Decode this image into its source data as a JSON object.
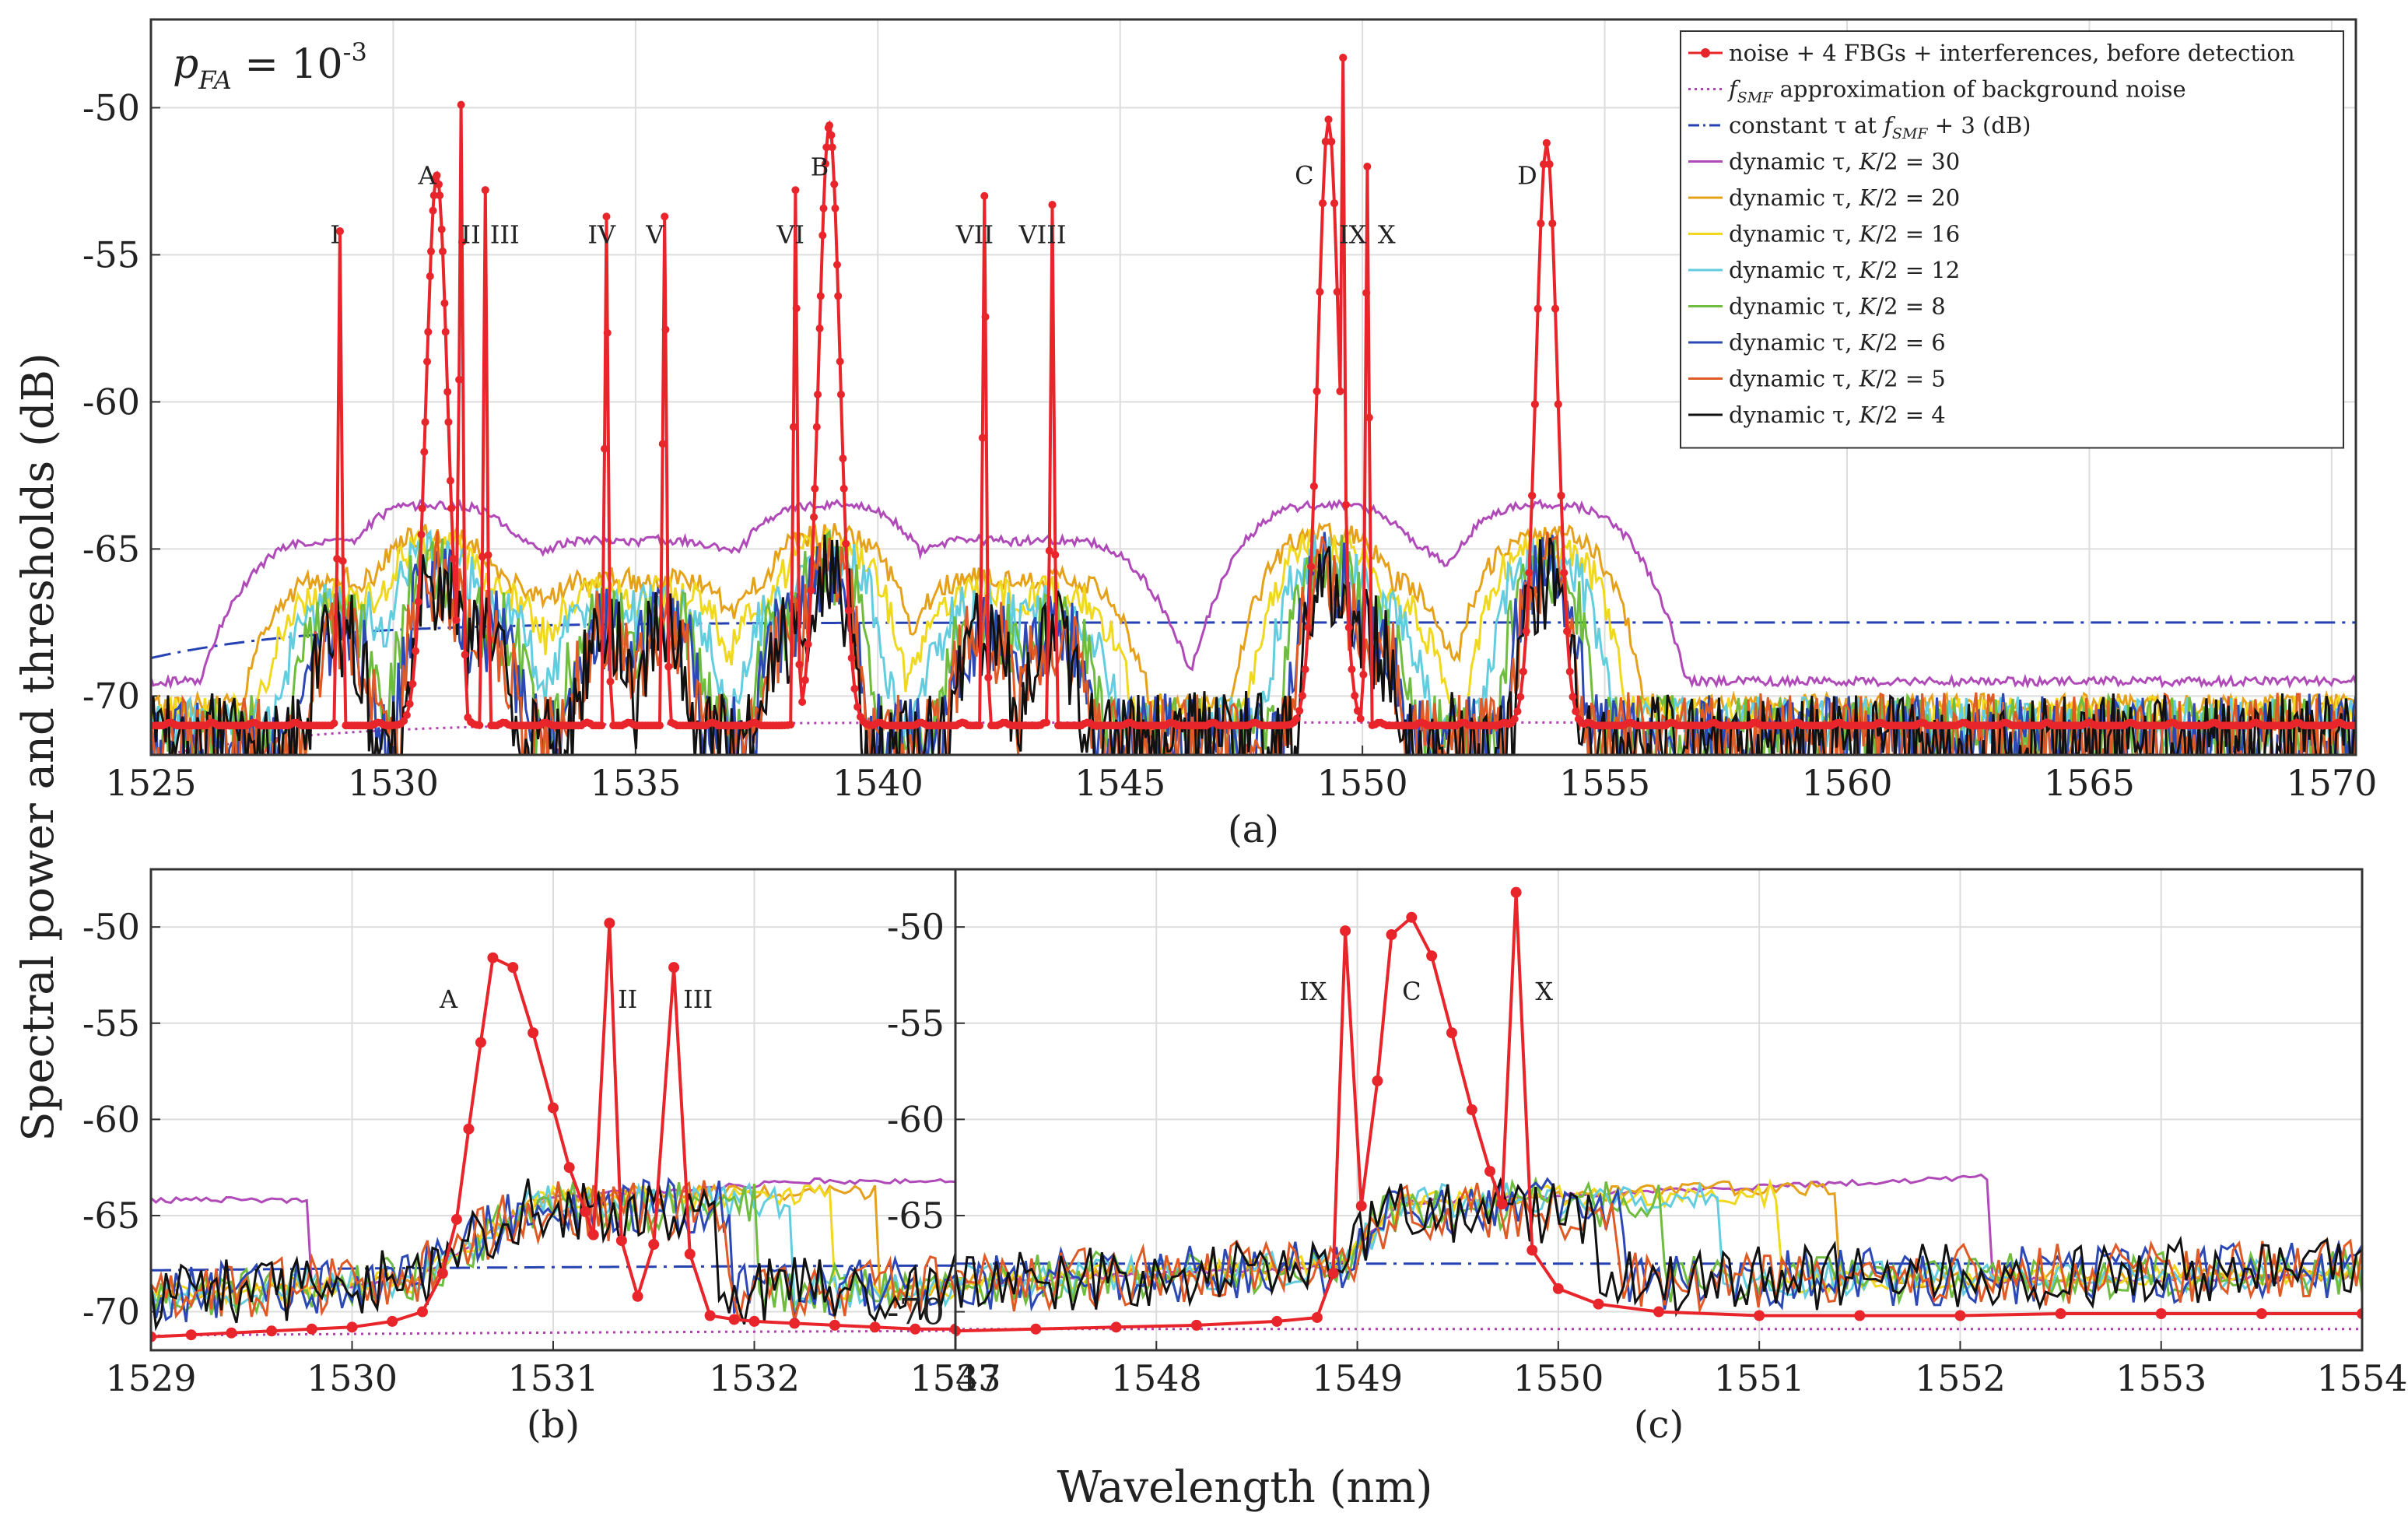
{
  "chart_data": [
    {
      "panel": "a",
      "type": "line",
      "panel_label": "(a)",
      "annotation": {
        "p": "p",
        "sub": "FA",
        "eq": " = 10",
        "sup": "-3"
      },
      "xlim": [
        1525,
        1570.5
      ],
      "ylim": [
        -72,
        -47
      ],
      "xticks": [
        1525,
        1530,
        1535,
        1540,
        1545,
        1550,
        1555,
        1560,
        1565,
        1570
      ],
      "yticks": [
        -50,
        -55,
        -60,
        -65,
        -70
      ],
      "grid": true,
      "fbgs": [
        {
          "label": "A",
          "center": 1530.9,
          "peak": -52.3
        },
        {
          "label": "B",
          "center": 1539.0,
          "peak": -50.6
        },
        {
          "label": "C",
          "center": 1549.3,
          "peak": -50.4
        },
        {
          "label": "D",
          "center": 1553.8,
          "peak": -51.2
        }
      ],
      "interferences": [
        {
          "label": "I",
          "x": 1528.9,
          "peak": -54.2
        },
        {
          "label": "II",
          "x": 1531.4,
          "peak": -49.9
        },
        {
          "label": "III",
          "x": 1531.9,
          "peak": -52.8
        },
        {
          "label": "IV",
          "x": 1534.4,
          "peak": -53.7
        },
        {
          "label": "V",
          "x": 1535.6,
          "peak": -53.7
        },
        {
          "label": "VI",
          "x": 1538.3,
          "peak": -52.8
        },
        {
          "label": "VII",
          "x": 1542.2,
          "peak": -53.0
        },
        {
          "label": "VIII",
          "x": 1543.6,
          "peak": -53.3
        },
        {
          "label": "IX",
          "x": 1549.6,
          "peak": -48.3
        },
        {
          "label": "X",
          "x": 1550.1,
          "peak": -52.0
        }
      ],
      "peak_labels": [
        {
          "text": "I",
          "x": 1528.8,
          "y": -54.6
        },
        {
          "text": "A",
          "x": 1530.7,
          "y": -52.6
        },
        {
          "text": "II",
          "x": 1531.6,
          "y": -54.6
        },
        {
          "text": "III",
          "x": 1532.3,
          "y": -54.6
        },
        {
          "text": "IV",
          "x": 1534.3,
          "y": -54.6
        },
        {
          "text": "V",
          "x": 1535.4,
          "y": -54.6
        },
        {
          "text": "VI",
          "x": 1538.2,
          "y": -54.6
        },
        {
          "text": "B",
          "x": 1538.8,
          "y": -52.3
        },
        {
          "text": "VII",
          "x": 1542.0,
          "y": -54.6
        },
        {
          "text": "VIII",
          "x": 1543.4,
          "y": -54.6
        },
        {
          "text": "C",
          "x": 1548.8,
          "y": -52.6
        },
        {
          "text": "IX",
          "x": 1549.8,
          "y": -54.6
        },
        {
          "text": "X",
          "x": 1550.5,
          "y": -54.6
        },
        {
          "text": "D",
          "x": 1553.4,
          "y": -52.6
        }
      ]
    },
    {
      "panel": "b",
      "type": "line",
      "panel_label": "(b)",
      "xlim": [
        1529,
        1533
      ],
      "ylim": [
        -72,
        -47
      ],
      "xticks": [
        1529,
        1530,
        1531,
        1532,
        1533
      ],
      "yticks": [
        -50,
        -55,
        -60,
        -65,
        -70
      ],
      "grid": true,
      "signal_points": [
        [
          1529.0,
          -71.3
        ],
        [
          1529.2,
          -71.2
        ],
        [
          1529.4,
          -71.1
        ],
        [
          1529.6,
          -71.0
        ],
        [
          1529.8,
          -70.9
        ],
        [
          1530.0,
          -70.8
        ],
        [
          1530.2,
          -70.5
        ],
        [
          1530.35,
          -70.0
        ],
        [
          1530.45,
          -68.0
        ],
        [
          1530.52,
          -65.2
        ],
        [
          1530.58,
          -60.5
        ],
        [
          1530.64,
          -56.0
        ],
        [
          1530.7,
          -51.6
        ],
        [
          1530.8,
          -52.1
        ],
        [
          1530.9,
          -55.5
        ],
        [
          1531.0,
          -59.4
        ],
        [
          1531.08,
          -62.5
        ],
        [
          1531.16,
          -64.8
        ],
        [
          1531.2,
          -66.0
        ],
        [
          1531.28,
          -49.8
        ],
        [
          1531.34,
          -66.3
        ],
        [
          1531.42,
          -69.2
        ],
        [
          1531.5,
          -66.5
        ],
        [
          1531.6,
          -52.1
        ],
        [
          1531.68,
          -67.0
        ],
        [
          1531.78,
          -70.2
        ],
        [
          1531.9,
          -70.4
        ],
        [
          1532.0,
          -70.5
        ],
        [
          1532.2,
          -70.6
        ],
        [
          1532.4,
          -70.7
        ],
        [
          1532.6,
          -70.8
        ],
        [
          1532.8,
          -70.9
        ],
        [
          1533.0,
          -70.9
        ]
      ],
      "peak_labels": [
        {
          "text": "A",
          "x": 1530.48,
          "y": -54.2
        },
        {
          "text": "II",
          "x": 1531.37,
          "y": -54.2
        },
        {
          "text": "III",
          "x": 1531.72,
          "y": -54.2
        }
      ]
    },
    {
      "panel": "c",
      "type": "line",
      "panel_label": "(c)",
      "xlim": [
        1547,
        1554
      ],
      "ylim": [
        -72,
        -47
      ],
      "xticks": [
        1547,
        1548,
        1549,
        1550,
        1551,
        1552,
        1553,
        1554
      ],
      "yticks": [
        -50,
        -55,
        -60,
        -65,
        -70
      ],
      "grid": true,
      "signal_points": [
        [
          1547.0,
          -71.0
        ],
        [
          1547.4,
          -70.9
        ],
        [
          1547.8,
          -70.8
        ],
        [
          1548.2,
          -70.7
        ],
        [
          1548.6,
          -70.5
        ],
        [
          1548.8,
          -70.3
        ],
        [
          1548.88,
          -68.0
        ],
        [
          1548.94,
          -50.2
        ],
        [
          1549.02,
          -64.5
        ],
        [
          1549.1,
          -58.0
        ],
        [
          1549.17,
          -50.4
        ],
        [
          1549.27,
          -49.5
        ],
        [
          1549.37,
          -51.5
        ],
        [
          1549.47,
          -55.5
        ],
        [
          1549.57,
          -59.5
        ],
        [
          1549.66,
          -62.7
        ],
        [
          1549.72,
          -64.4
        ],
        [
          1549.79,
          -48.2
        ],
        [
          1549.87,
          -66.8
        ],
        [
          1550.0,
          -68.8
        ],
        [
          1550.2,
          -69.6
        ],
        [
          1550.5,
          -70.0
        ],
        [
          1551.0,
          -70.2
        ],
        [
          1551.5,
          -70.2
        ],
        [
          1552.0,
          -70.2
        ],
        [
          1552.5,
          -70.1
        ],
        [
          1553.0,
          -70.1
        ],
        [
          1553.5,
          -70.1
        ],
        [
          1554.0,
          -70.1
        ]
      ],
      "peak_labels": [
        {
          "text": "IX",
          "x": 1548.78,
          "y": -53.8
        },
        {
          "text": "C",
          "x": 1549.27,
          "y": -53.8
        },
        {
          "text": "X",
          "x": 1549.93,
          "y": -53.8
        }
      ]
    }
  ],
  "axis_labels": {
    "y": "Spectral power and thresholds (dB)",
    "x": "Wavelength (nm)"
  },
  "legend": {
    "placement": "top-right",
    "entries": [
      {
        "name": "noise + 4 FBGs + interferences, before detection",
        "color": "#e8252a",
        "style": "marker-line",
        "k": null
      },
      {
        "name": "approximation of background noise",
        "prefix": "f",
        "prefix_sub": "SMF",
        "color": "#b13fb0",
        "style": "dotted",
        "k": null
      },
      {
        "name": "constant τ at",
        "italic": "f",
        "italic_sub": "SMF",
        "suffix": " + 3 (dB)",
        "color": "#2541b2",
        "style": "dashdot",
        "k": null
      },
      {
        "name": "dynamic τ, K/2 = 30",
        "lead": "dynamic τ, ",
        "kvar": "K",
        "tail": "/2 = 30",
        "color": "#b04ab8",
        "style": "solid",
        "k": 30
      },
      {
        "name": "dynamic τ, K/2 = 20",
        "lead": "dynamic τ, ",
        "kvar": "K",
        "tail": "/2 = 20",
        "color": "#e6a11a",
        "style": "solid",
        "k": 20
      },
      {
        "name": "dynamic τ, K/2 = 16",
        "lead": "dynamic τ, ",
        "kvar": "K",
        "tail": "/2 = 16",
        "color": "#f0d81e",
        "style": "solid",
        "k": 16
      },
      {
        "name": "dynamic τ, K/2 = 12",
        "lead": "dynamic τ, ",
        "kvar": "K",
        "tail": "/2 = 12",
        "color": "#63cde0",
        "style": "solid",
        "k": 12
      },
      {
        "name": "dynamic τ, K/2 = 8",
        "lead": "dynamic τ, ",
        "kvar": "K",
        "tail": "/2 = 8",
        "color": "#6fbd3e",
        "style": "solid",
        "k": 8
      },
      {
        "name": "dynamic τ, K/2 = 6",
        "lead": "dynamic τ, ",
        "kvar": "K",
        "tail": "/2 = 6",
        "color": "#2c48b5",
        "style": "solid",
        "k": 6
      },
      {
        "name": "dynamic τ, K/2 = 5",
        "lead": "dynamic τ, ",
        "kvar": "K",
        "tail": "/2 = 5",
        "color": "#e05a26",
        "style": "solid",
        "k": 5
      },
      {
        "name": "dynamic τ, K/2 = 4",
        "lead": "dynamic τ, ",
        "kvar": "K",
        "tail": "/2 = 4",
        "color": "#111111",
        "style": "solid",
        "k": 4
      }
    ]
  }
}
